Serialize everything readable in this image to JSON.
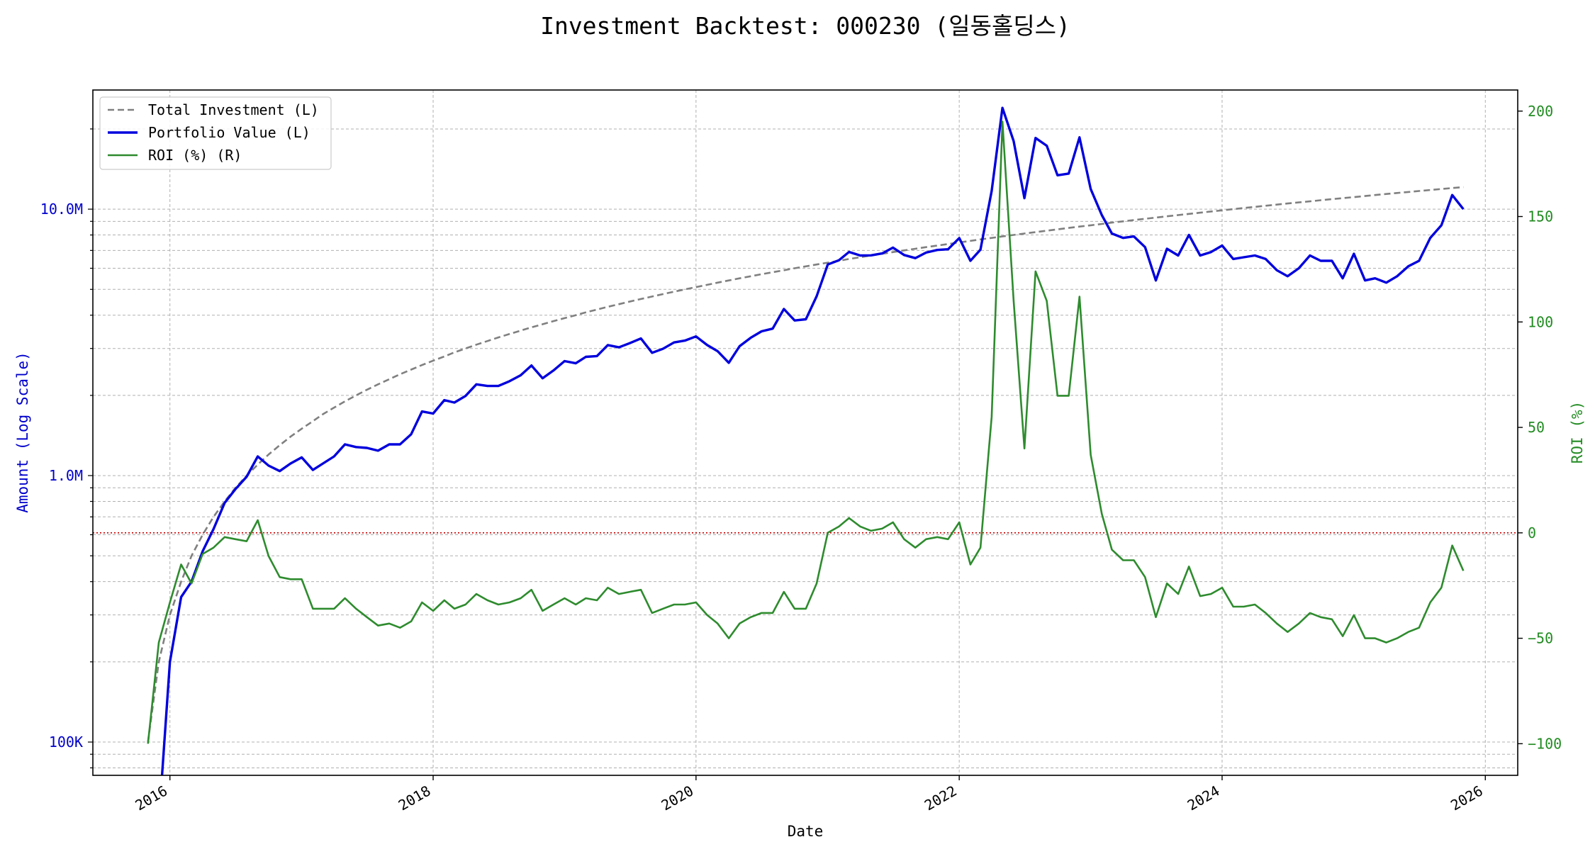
{
  "chart_data": {
    "type": "line",
    "title": "Investment Backtest: 000230 (일동홀딩스)",
    "xlabel": "Date",
    "ylabel_left": "Amount (Log Scale)",
    "ylabel_right": "ROI (%)",
    "left_scale": "log",
    "left_ylim": [
      75000,
      28000000
    ],
    "right_ylim": [
      -115,
      210
    ],
    "x_range": [
      "2015-06-01",
      "2026-04-01"
    ],
    "grid": true,
    "legend_position": "top-left",
    "x_ticks": [
      {
        "date": "2016-01-01",
        "label": "2016"
      },
      {
        "date": "2018-01-01",
        "label": "2018"
      },
      {
        "date": "2020-01-01",
        "label": "2020"
      },
      {
        "date": "2022-01-01",
        "label": "2022"
      },
      {
        "date": "2024-01-01",
        "label": "2024"
      },
      {
        "date": "2026-01-01",
        "label": "2026"
      }
    ],
    "left_ticks": [
      {
        "value": 100000,
        "label": "100K"
      },
      {
        "value": 1000000,
        "label": "1.0M"
      },
      {
        "value": 10000000,
        "label": "10.0M"
      }
    ],
    "right_ticks": [
      {
        "value": -100,
        "label": "−100"
      },
      {
        "value": -50,
        "label": "−50"
      },
      {
        "value": 0,
        "label": "0"
      },
      {
        "value": 50,
        "label": "50"
      },
      {
        "value": 100,
        "label": "100"
      },
      {
        "value": 150,
        "label": "150"
      },
      {
        "value": 200,
        "label": "200"
      }
    ],
    "reference_line": {
      "axis": "right",
      "value": 0,
      "color": "#cc0000"
    },
    "investment_start": "2015-11-01",
    "monthly_investment": 100000,
    "series": [
      {
        "name": "Total Investment (L)",
        "axis": "left",
        "color": "#808080",
        "style": "dashed",
        "computed": "cumulative_monthly"
      },
      {
        "name": "Portfolio Value (L)",
        "axis": "left",
        "color": "#0000dd",
        "style": "solid",
        "start": "2015-12-01",
        "values": [
          50000,
          200000,
          350000,
          400000,
          520000,
          630000,
          790000,
          890000,
          990000,
          1180000,
          1090000,
          1040000,
          1110000,
          1170000,
          1050000,
          1110000,
          1180000,
          1310000,
          1280000,
          1270000,
          1240000,
          1310000,
          1310000,
          1430000,
          1740000,
          1710000,
          1920000,
          1880000,
          1990000,
          2200000,
          2170000,
          2170000,
          2260000,
          2380000,
          2590000,
          2320000,
          2480000,
          2690000,
          2640000,
          2790000,
          2810000,
          3090000,
          3030000,
          3140000,
          3270000,
          2890000,
          2990000,
          3160000,
          3210000,
          3330000,
          3090000,
          2930000,
          2650000,
          3060000,
          3290000,
          3480000,
          3560000,
          4220000,
          3820000,
          3860000,
          4710000,
          6200000,
          6430000,
          6910000,
          6700000,
          6710000,
          6820000,
          7170000,
          6730000,
          6550000,
          6870000,
          7030000,
          7070000,
          7790000,
          6400000,
          7050000,
          11700000,
          24000000,
          18000000,
          11000000,
          18500000,
          17300000,
          13400000,
          13600000,
          18600000,
          11900000,
          9500000,
          8100000,
          7800000,
          7900000,
          7200000,
          5400000,
          7100000,
          6700000,
          8000000,
          6700000,
          6900000,
          7300000,
          6500000,
          6600000,
          6700000,
          6500000,
          5900000,
          5600000,
          6000000,
          6700000,
          6400000,
          6400000,
          5500000,
          6800000,
          5400000,
          5500000,
          5300000,
          5600000,
          6100000,
          6400000,
          7800000,
          8700000,
          11300000,
          10000000
        ]
      },
      {
        "name": "ROI (%) (R)",
        "axis": "right",
        "color": "#2e8b2e",
        "style": "solid",
        "start": "2015-11-01",
        "values": [
          -100,
          -52,
          -33,
          -15,
          -24,
          -10,
          -7,
          -2,
          -3,
          -4,
          6,
          -11,
          -21,
          -22,
          -22,
          -36,
          -36,
          -36,
          -31,
          -36,
          -40,
          -44,
          -43,
          -45,
          -42,
          -33,
          -37,
          -32,
          -36,
          -34,
          -29,
          -32,
          -34,
          -33,
          -31,
          -27,
          -37,
          -34,
          -31,
          -34,
          -31,
          -32,
          -26,
          -29,
          -28,
          -27,
          -38,
          -36,
          -34,
          -34,
          -33,
          -39,
          -43,
          -50,
          -43,
          -40,
          -38,
          -38,
          -28,
          -36,
          -36,
          -24,
          0,
          3,
          7,
          3,
          1,
          2,
          5,
          -3,
          -7,
          -3,
          -2,
          -3,
          5,
          -15,
          -7,
          55,
          195,
          110,
          40,
          124,
          110,
          65,
          65,
          112,
          37,
          9,
          -8,
          -13,
          -13,
          -21,
          -40,
          -24,
          -29,
          -16,
          -30,
          -29,
          -26,
          -35,
          -35,
          -34,
          -38,
          -43,
          -47,
          -43,
          -38,
          -40,
          -41,
          -49,
          -39,
          -50,
          -50,
          -52,
          -50,
          -47,
          -45,
          -33,
          -26,
          -6,
          -18
        ]
      }
    ]
  }
}
